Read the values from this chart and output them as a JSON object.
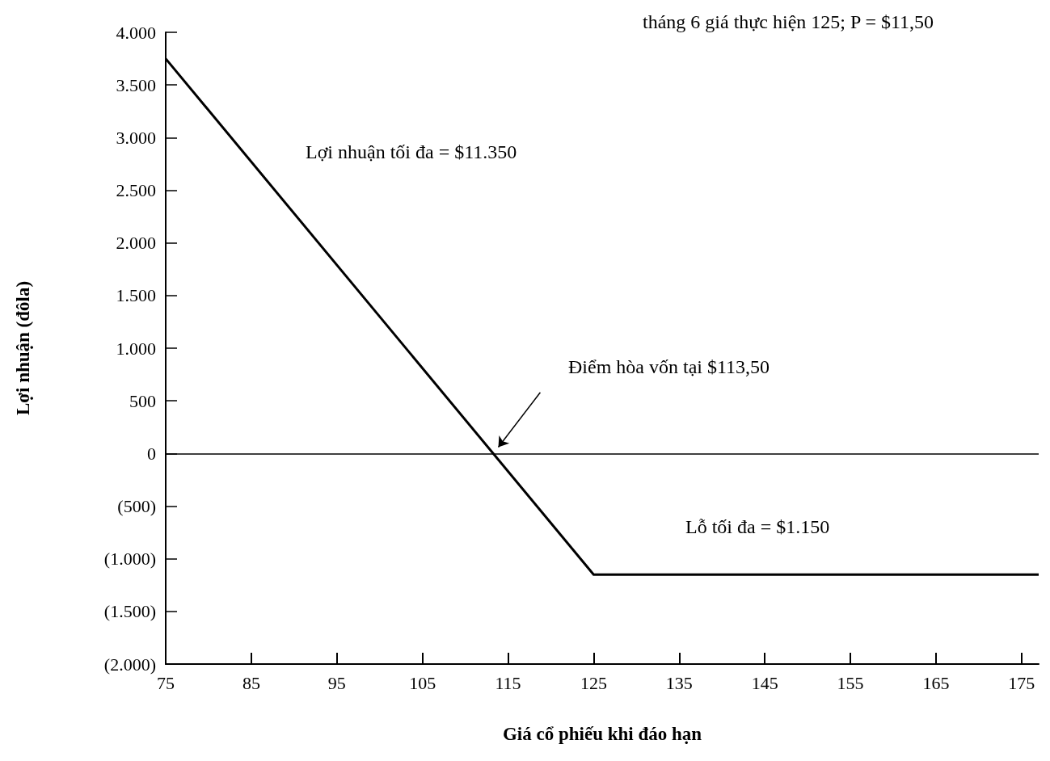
{
  "chart_data": {
    "type": "line",
    "title": "tháng 6 giá thực hiện 125; P = $11,50",
    "xlabel": "Giá cổ phiếu khi đáo hạn",
    "ylabel": "Lợi nhuận (đôla)",
    "x": [
      75,
      125,
      177
    ],
    "series": [
      {
        "color": "#000000",
        "values": [
          3750,
          -1150,
          -1150
        ]
      }
    ],
    "xlim": [
      75,
      177
    ],
    "xticks": [
      75,
      85,
      95,
      105,
      115,
      125,
      135,
      145,
      155,
      165,
      175
    ],
    "ylim": [
      -2000,
      4000
    ],
    "yticks": [
      {
        "value": -2000,
        "label": "(2.000)"
      },
      {
        "value": -1500,
        "label": "(1.500)"
      },
      {
        "value": -1000,
        "label": "(1.000)"
      },
      {
        "value": -500,
        "label": "(500)"
      },
      0,
      500,
      {
        "value": 1000,
        "label": "1.000"
      },
      {
        "value": 1500,
        "label": "1.500"
      },
      {
        "value": 2000,
        "label": "2.000"
      },
      {
        "value": 2500,
        "label": "2.500"
      },
      {
        "value": 3000,
        "label": "3.000"
      },
      {
        "value": 3500,
        "label": "3.500"
      },
      {
        "value": 4000,
        "label": "4.000"
      }
    ],
    "ref_lines": [
      {
        "axis": "y",
        "value": 0,
        "color": "#000000"
      }
    ],
    "annotations": [
      "Lợi nhuận tối đa = $11.350",
      "Điểm hòa vốn tại $113,50",
      "Lỗ tối đa = $1.150"
    ],
    "grid": false
  }
}
